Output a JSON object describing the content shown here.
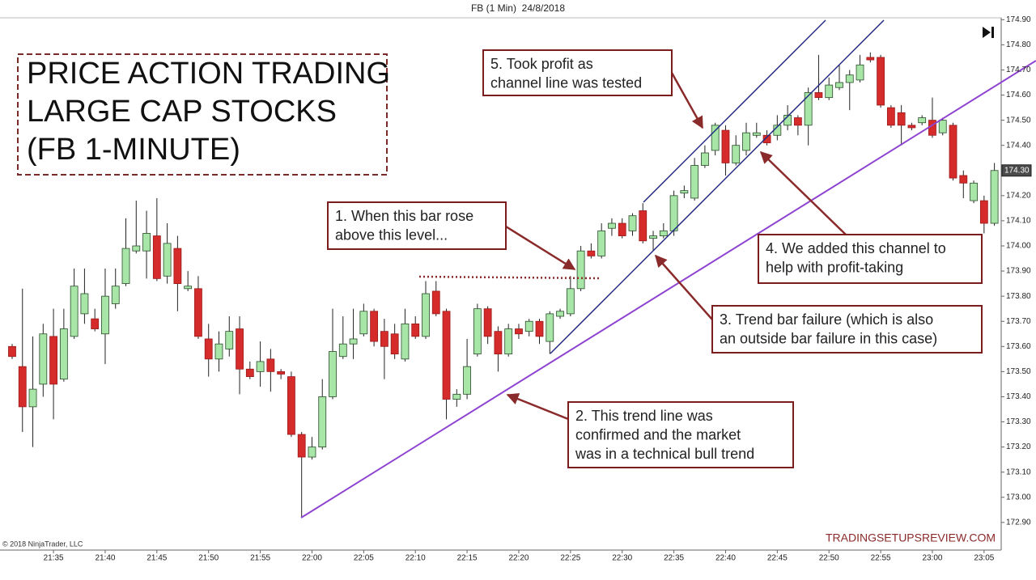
{
  "chart_data": {
    "type": "candlestick",
    "title": "FB (1 Min)  24/8/2018",
    "categories": [
      null,
      null,
      null,
      null,
      "21:35",
      null,
      null,
      null,
      null,
      "21:40",
      null,
      null,
      null,
      null,
      "21:45",
      null,
      null,
      null,
      null,
      "21:50",
      null,
      null,
      null,
      null,
      "21:55",
      null,
      null,
      null,
      null,
      "22:00",
      null,
      null,
      null,
      null,
      "22:05",
      null,
      null,
      null,
      null,
      "22:10",
      null,
      null,
      null,
      null,
      "22:15",
      null,
      null,
      null,
      null,
      "22:20",
      null,
      null,
      null,
      null,
      "22:25",
      null,
      null,
      null,
      null,
      "22:30",
      null,
      null,
      null,
      null,
      "22:35",
      null,
      null,
      null,
      null,
      "22:40",
      null,
      null,
      null,
      null,
      "22:45",
      null,
      null,
      null,
      null,
      "22:50",
      null,
      null,
      null,
      null,
      "22:55",
      null,
      null,
      null,
      null,
      "23:00",
      null,
      null,
      null,
      null,
      "23:05",
      null
    ],
    "open": [
      173.6,
      173.52,
      173.36,
      173.45,
      173.64,
      173.47,
      173.64,
      173.73,
      173.71,
      173.65,
      173.77,
      173.85,
      173.98,
      173.98,
      174.04,
      173.88,
      173.99,
      173.83,
      173.83,
      173.63,
      173.55,
      173.59,
      173.67,
      173.51,
      173.5,
      173.55,
      173.5,
      173.48,
      173.25,
      173.16,
      173.2,
      173.4,
      173.56,
      173.61,
      173.65,
      173.74,
      173.66,
      173.65,
      173.55,
      173.69,
      173.64,
      173.82,
      173.74,
      173.39,
      173.41,
      173.57,
      173.75,
      173.66,
      173.57,
      173.67,
      173.66,
      173.7,
      173.62,
      173.72,
      173.73,
      173.83,
      173.98,
      173.96,
      174.07,
      174.09,
      174.06,
      174.14,
      174.03,
      174.04,
      174.06,
      174.21,
      174.19,
      174.32,
      174.38,
      174.46,
      174.33,
      174.38,
      174.44,
      174.44,
      174.44,
      174.48,
      174.51,
      174.48,
      174.61,
      174.59,
      174.63,
      174.65,
      174.66,
      174.75,
      174.75,
      174.55,
      174.53,
      174.48,
      174.49,
      174.5,
      174.45,
      174.48,
      174.28,
      174.18,
      174.18,
      174.09
    ],
    "high": [
      173.61,
      173.83,
      173.64,
      173.69,
      173.75,
      173.75,
      173.91,
      173.91,
      173.75,
      173.91,
      173.91,
      174.11,
      174.18,
      174.14,
      174.19,
      174.09,
      174.04,
      173.9,
      173.88,
      173.69,
      173.66,
      173.72,
      173.72,
      173.54,
      173.62,
      173.59,
      173.51,
      173.5,
      173.26,
      173.24,
      173.47,
      173.75,
      173.72,
      173.75,
      173.77,
      173.75,
      173.71,
      173.69,
      173.75,
      173.72,
      173.86,
      173.86,
      173.75,
      173.43,
      173.63,
      173.77,
      173.76,
      173.68,
      173.69,
      173.69,
      173.71,
      173.71,
      173.74,
      173.75,
      173.88,
      174.0,
      174.01,
      174.09,
      174.11,
      174.11,
      174.13,
      174.17,
      174.06,
      174.09,
      174.22,
      174.24,
      174.35,
      174.4,
      174.49,
      174.48,
      174.44,
      174.49,
      174.49,
      174.46,
      174.52,
      174.56,
      174.52,
      174.63,
      174.76,
      174.67,
      174.72,
      174.7,
      174.76,
      174.77,
      174.76,
      174.56,
      174.56,
      174.49,
      174.52,
      174.59,
      174.51,
      174.49,
      174.3,
      174.26,
      174.2,
      174.33
    ],
    "low": [
      173.55,
      173.26,
      173.2,
      173.4,
      173.31,
      173.46,
      173.63,
      173.69,
      173.66,
      173.53,
      173.75,
      173.84,
      173.97,
      173.87,
      173.86,
      173.85,
      173.74,
      173.82,
      173.63,
      173.48,
      173.5,
      173.56,
      173.41,
      173.47,
      173.44,
      173.42,
      173.47,
      173.24,
      172.92,
      173.15,
      173.19,
      173.39,
      173.55,
      173.55,
      173.64,
      173.6,
      173.47,
      173.55,
      173.54,
      173.63,
      173.63,
      173.72,
      173.31,
      173.36,
      173.39,
      173.56,
      173.61,
      173.5,
      173.56,
      173.63,
      173.64,
      173.61,
      173.57,
      173.71,
      173.72,
      173.82,
      173.95,
      173.95,
      174.04,
      174.03,
      174.04,
      174.01,
      173.98,
      174.03,
      174.04,
      174.19,
      174.18,
      174.31,
      174.36,
      174.28,
      174.32,
      174.36,
      174.43,
      174.4,
      174.42,
      174.46,
      174.44,
      174.4,
      174.58,
      174.58,
      174.62,
      174.54,
      174.65,
      174.73,
      174.55,
      174.47,
      174.4,
      174.46,
      174.48,
      174.43,
      174.44,
      174.26,
      174.19,
      174.17,
      174.05,
      174.08
    ],
    "close": [
      173.56,
      173.36,
      173.43,
      173.65,
      173.45,
      173.67,
      173.84,
      173.81,
      173.67,
      173.8,
      173.84,
      173.99,
      174.0,
      174.05,
      173.87,
      174.01,
      173.85,
      173.84,
      173.64,
      173.55,
      173.61,
      173.66,
      173.51,
      173.48,
      173.54,
      173.5,
      173.49,
      173.25,
      173.16,
      173.2,
      173.4,
      173.58,
      173.61,
      173.63,
      173.74,
      173.62,
      173.6,
      173.57,
      173.69,
      173.64,
      173.81,
      173.73,
      173.39,
      173.41,
      173.52,
      173.75,
      173.64,
      173.57,
      173.67,
      173.65,
      173.7,
      173.64,
      173.73,
      173.74,
      173.83,
      173.98,
      173.96,
      174.06,
      174.09,
      174.04,
      174.12,
      174.02,
      174.04,
      174.06,
      174.2,
      174.22,
      174.32,
      174.37,
      174.48,
      174.33,
      174.4,
      174.45,
      174.45,
      174.41,
      174.48,
      174.52,
      174.48,
      174.61,
      174.59,
      174.64,
      174.65,
      174.68,
      174.72,
      174.74,
      174.56,
      174.48,
      174.48,
      174.47,
      174.51,
      174.44,
      174.5,
      174.27,
      174.25,
      174.25,
      174.09,
      174.3
    ],
    "up_color": "#a8e6a8",
    "down_color": "#d62b2b",
    "ylim": [
      172.79,
      174.93
    ],
    "yticks": [
      {
        "value": 172.9,
        "label": "172.90"
      },
      {
        "value": 173.0,
        "label": "173.00"
      },
      {
        "value": 173.1,
        "label": "173.10"
      },
      {
        "value": 173.2,
        "label": "173.20"
      },
      {
        "value": 173.3,
        "label": "173.30"
      },
      {
        "value": 173.4,
        "label": "173.40"
      },
      {
        "value": 173.5,
        "label": "173.50"
      },
      {
        "value": 173.6,
        "label": "173.60"
      },
      {
        "value": 173.7,
        "label": "173.70"
      },
      {
        "value": 173.8,
        "label": "173.80"
      },
      {
        "value": 173.9,
        "label": "173.90"
      },
      {
        "value": 174.0,
        "label": "174.00"
      },
      {
        "value": 174.1,
        "label": "174.10"
      },
      {
        "value": 174.2,
        "label": "174.20"
      },
      {
        "value": 174.4,
        "label": "174.40"
      },
      {
        "value": 174.5,
        "label": "174.50"
      },
      {
        "value": 174.6,
        "label": "174.60"
      },
      {
        "value": 174.7,
        "label": "174.70"
      },
      {
        "value": 174.8,
        "label": "174.80"
      },
      {
        "value": 174.9,
        "label": "174.90"
      }
    ],
    "last_price": {
      "value": 174.3,
      "label": "174.30"
    },
    "grid": false,
    "heading": [
      "PRICE ACTION TRADING",
      "LARGE CAP STOCKS",
      "(FB 1-MINUTE)"
    ],
    "annotations": [
      [
        "1. When this bar rose",
        "above this level..."
      ],
      [
        "2. This trend line was",
        "confirmed and the market",
        "was in a technical bull trend"
      ],
      [
        "3. Trend bar failure (which is also",
        "an outside bar failure in this case)"
      ],
      [
        "4. We added this channel to",
        "help with profit-taking"
      ],
      [
        "5. Took profit as",
        "channel line was tested"
      ]
    ],
    "copyright": "© 2018 NinjaTrader, LLC",
    "watermark": "TRADINGSETUPSREVIEW.COM"
  }
}
